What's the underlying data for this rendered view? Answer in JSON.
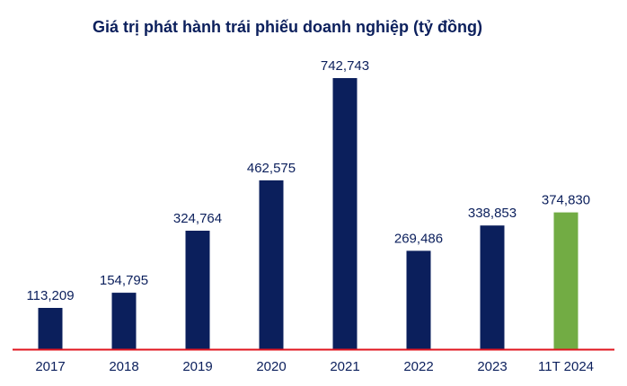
{
  "chart_data": {
    "type": "bar",
    "title": "Giá trị phát hành trái phiếu doanh nghiệp (tỷ đồng)",
    "xlabel": "",
    "ylabel": "",
    "categories": [
      "2017",
      "2018",
      "2019",
      "2020",
      "2021",
      "2022",
      "2023",
      "11T 2024"
    ],
    "values": [
      113209,
      154795,
      324764,
      462575,
      742743,
      269486,
      338853,
      374830
    ],
    "value_labels": [
      "113,209",
      "154,795",
      "324,764",
      "462,575",
      "742,743",
      "269,486",
      "338,853",
      "374,830"
    ],
    "bar_colors": [
      "#0b1f5c",
      "#0b1f5c",
      "#0b1f5c",
      "#0b1f5c",
      "#0b1f5c",
      "#0b1f5c",
      "#0b1f5c",
      "#72ac44"
    ],
    "baseline_color": "#e0141e",
    "ylim": [
      0,
      742743
    ],
    "grid": false,
    "legend": "none"
  }
}
